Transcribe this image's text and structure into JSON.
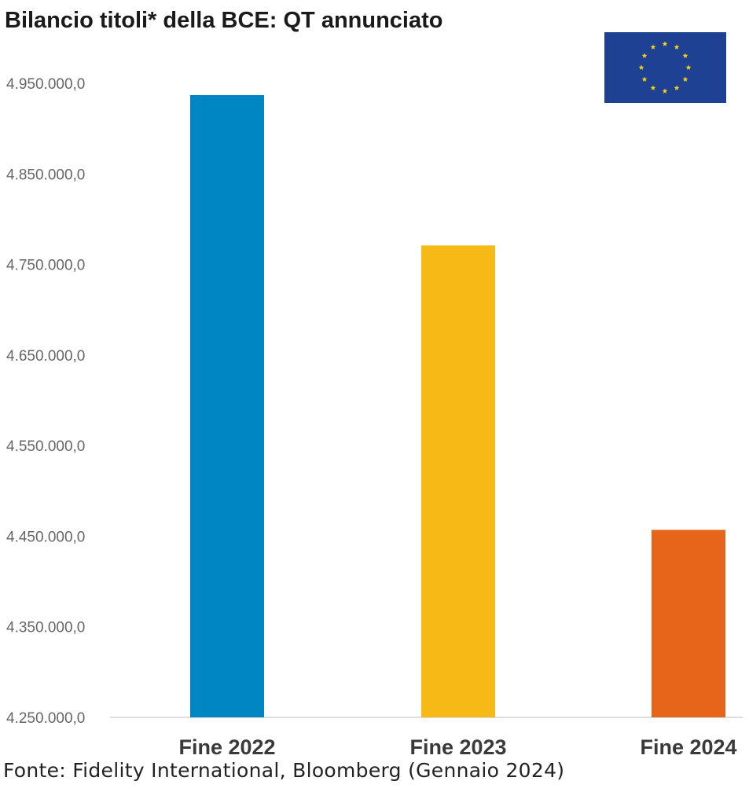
{
  "chart_data": {
    "type": "bar",
    "title": "Bilancio titoli* della BCE: QT annunciato",
    "categories": [
      "Fine 2022",
      "Fine 2023",
      "Fine 2024"
    ],
    "values": [
      4937000,
      4771000,
      4457000
    ],
    "colors": [
      "#0086c3",
      "#f6b916",
      "#e7641b"
    ],
    "xlabel": "",
    "ylabel": "",
    "ylim": [
      4250000,
      4950000
    ],
    "yticks": [
      4250000,
      4350000,
      4450000,
      4550000,
      4650000,
      4750000,
      4850000,
      4950000
    ],
    "ytick_labels": [
      "4.250.000,0",
      "4.350.000,0",
      "4.450.000,0",
      "4.550.000,0",
      "4.650.000,0",
      "4.750.000,0",
      "4.850.000,0",
      "4.950.000,0"
    ],
    "grid": false,
    "legend": "none",
    "source": "Fonte: Fidelity International, Bloomberg (Gennaio 2024)"
  },
  "flag": {
    "icon": "eu-flag-icon",
    "background": "#1f4193",
    "star_color": "#f7d512"
  }
}
